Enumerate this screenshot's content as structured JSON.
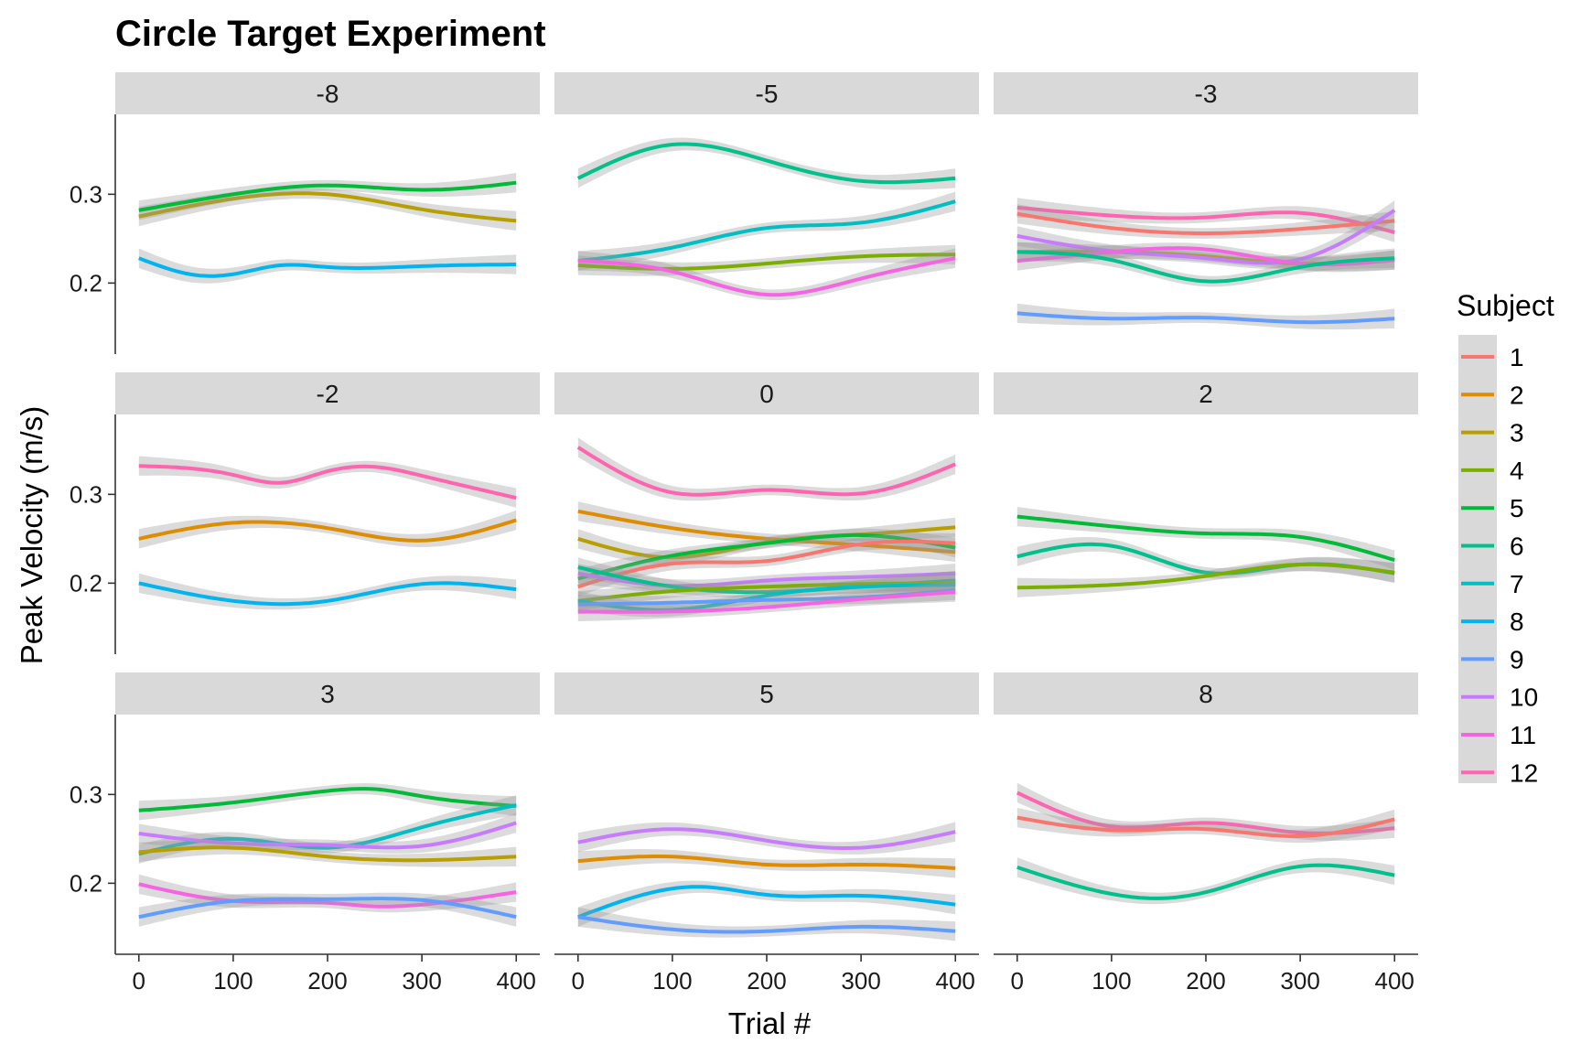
{
  "chart_data": {
    "type": "line",
    "title": "Circle Target Experiment",
    "xlabel": "Trial #",
    "ylabel": "Peak Velocity (m/s)",
    "xlim": [
      -25,
      425
    ],
    "ylim": [
      0.12,
      0.39
    ],
    "x_ticks": [
      0,
      100,
      200,
      300,
      400
    ],
    "y_ticks": [
      0.2,
      0.3
    ],
    "x_tick_labels": [
      "0",
      "100",
      "200",
      "300",
      "400"
    ],
    "y_tick_labels": [
      "0.2",
      "0.3"
    ],
    "smoother": "loess with grey confidence band",
    "legend": {
      "title": "Subject",
      "position": "right",
      "entries": [
        {
          "label": "1",
          "color": "#F8766D"
        },
        {
          "label": "2",
          "color": "#DE8C00"
        },
        {
          "label": "3",
          "color": "#B79F00"
        },
        {
          "label": "4",
          "color": "#7CAE00"
        },
        {
          "label": "5",
          "color": "#00BA38"
        },
        {
          "label": "6",
          "color": "#00C08B"
        },
        {
          "label": "7",
          "color": "#00BFC4"
        },
        {
          "label": "8",
          "color": "#00B4F0"
        },
        {
          "label": "9",
          "color": "#619CFF"
        },
        {
          "label": "10",
          "color": "#C77CFF"
        },
        {
          "label": "11",
          "color": "#F564E3"
        },
        {
          "label": "12",
          "color": "#FF64B0"
        }
      ]
    },
    "panels": [
      {
        "label": "-8",
        "series": [
          {
            "subject": "3",
            "x": [
              0,
              100,
              200,
              300,
              400
            ],
            "y": [
              0.275,
              0.295,
              0.3,
              0.283,
              0.27
            ]
          },
          {
            "subject": "5",
            "x": [
              0,
              100,
              200,
              300,
              400
            ],
            "y": [
              0.282,
              0.3,
              0.31,
              0.305,
              0.313
            ]
          },
          {
            "subject": "8",
            "x": [
              0,
              60,
              100,
              150,
              200,
              300,
              400
            ],
            "y": [
              0.228,
              0.209,
              0.21,
              0.22,
              0.218,
              0.219,
              0.221
            ]
          }
        ]
      },
      {
        "label": "-5",
        "series": [
          {
            "subject": "6",
            "x": [
              0,
              100,
              200,
              300,
              400
            ],
            "y": [
              0.318,
              0.356,
              0.338,
              0.315,
              0.318
            ]
          },
          {
            "subject": "7",
            "x": [
              0,
              100,
              200,
              300,
              400
            ],
            "y": [
              0.225,
              0.24,
              0.262,
              0.268,
              0.292
            ]
          },
          {
            "subject": "4",
            "x": [
              0,
              100,
              200,
              300,
              400
            ],
            "y": [
              0.22,
              0.216,
              0.222,
              0.23,
              0.232
            ]
          },
          {
            "subject": "11",
            "x": [
              0,
              100,
              200,
              300,
              400
            ],
            "y": [
              0.225,
              0.213,
              0.187,
              0.205,
              0.228
            ]
          }
        ]
      },
      {
        "label": "-3",
        "series": [
          {
            "subject": "12",
            "x": [
              0,
              100,
              200,
              300,
              400
            ],
            "y": [
              0.285,
              0.276,
              0.274,
              0.279,
              0.257
            ]
          },
          {
            "subject": "1",
            "x": [
              0,
              100,
              200,
              300,
              400
            ],
            "y": [
              0.278,
              0.262,
              0.256,
              0.261,
              0.27
            ]
          },
          {
            "subject": "3",
            "x": [
              0,
              100,
              200,
              300,
              400
            ],
            "y": [
              0.235,
              0.235,
              0.23,
              0.222,
              0.226
            ]
          },
          {
            "subject": "10",
            "x": [
              0,
              100,
              200,
              300,
              400
            ],
            "y": [
              0.253,
              0.236,
              0.228,
              0.227,
              0.282
            ]
          },
          {
            "subject": "11",
            "x": [
              0,
              100,
              200,
              300,
              400
            ],
            "y": [
              0.225,
              0.235,
              0.238,
              0.222,
              0.226
            ]
          },
          {
            "subject": "6",
            "x": [
              0,
              100,
              200,
              300,
              400
            ],
            "y": [
              0.235,
              0.226,
              0.202,
              0.218,
              0.228
            ]
          },
          {
            "subject": "9",
            "x": [
              0,
              100,
              200,
              300,
              400
            ],
            "y": [
              0.166,
              0.16,
              0.161,
              0.156,
              0.16
            ]
          }
        ]
      },
      {
        "label": "-2",
        "series": [
          {
            "subject": "12",
            "x": [
              0,
              100,
              150,
              200,
              250,
              300,
              400
            ],
            "y": [
              0.332,
              0.322,
              0.313,
              0.326,
              0.331,
              0.321,
              0.296
            ]
          },
          {
            "subject": "2",
            "x": [
              0,
              100,
              200,
              300,
              400
            ],
            "y": [
              0.25,
              0.268,
              0.262,
              0.248,
              0.271
            ]
          },
          {
            "subject": "8",
            "x": [
              0,
              100,
              200,
              300,
              400
            ],
            "y": [
              0.2,
              0.18,
              0.18,
              0.199,
              0.193
            ]
          }
        ]
      },
      {
        "label": "0",
        "series": [
          {
            "subject": "12",
            "x": [
              0,
              100,
              200,
              300,
              400
            ],
            "y": [
              0.353,
              0.302,
              0.305,
              0.301,
              0.334
            ]
          },
          {
            "subject": "2",
            "x": [
              0,
              100,
              200,
              300,
              400
            ],
            "y": [
              0.281,
              0.262,
              0.25,
              0.243,
              0.235
            ]
          },
          {
            "subject": "3",
            "x": [
              0,
              100,
              200,
              300,
              400
            ],
            "y": [
              0.25,
              0.229,
              0.246,
              0.255,
              0.263
            ]
          },
          {
            "subject": "5",
            "x": [
              0,
              100,
              200,
              300,
              400
            ],
            "y": [
              0.205,
              0.231,
              0.245,
              0.254,
              0.24
            ]
          },
          {
            "subject": "1",
            "x": [
              0,
              100,
              200,
              300,
              400
            ],
            "y": [
              0.196,
              0.222,
              0.225,
              0.244,
              0.245
            ]
          },
          {
            "subject": "10",
            "x": [
              0,
              100,
              200,
              300,
              400
            ],
            "y": [
              0.211,
              0.197,
              0.203,
              0.207,
              0.211
            ]
          },
          {
            "subject": "6",
            "x": [
              0,
              100,
              200,
              300,
              400
            ],
            "y": [
              0.218,
              0.196,
              0.19,
              0.196,
              0.203
            ]
          },
          {
            "subject": "4",
            "x": [
              0,
              100,
              200,
              300,
              400
            ],
            "y": [
              0.18,
              0.191,
              0.196,
              0.199,
              0.2
            ]
          },
          {
            "subject": "7",
            "x": [
              0,
              100,
              200,
              300,
              400
            ],
            "y": [
              0.18,
              0.17,
              0.186,
              0.196,
              0.198
            ]
          },
          {
            "subject": "9",
            "x": [
              0,
              100,
              200,
              300,
              400
            ],
            "y": [
              0.176,
              0.178,
              0.181,
              0.184,
              0.192
            ]
          },
          {
            "subject": "11",
            "x": [
              0,
              100,
              200,
              300,
              400
            ],
            "y": [
              0.168,
              0.168,
              0.173,
              0.182,
              0.19
            ]
          }
        ]
      },
      {
        "label": "2",
        "series": [
          {
            "subject": "5",
            "x": [
              0,
              100,
              200,
              300,
              400
            ],
            "y": [
              0.275,
              0.264,
              0.256,
              0.252,
              0.226
            ]
          },
          {
            "subject": "6",
            "x": [
              0,
              100,
              200,
              300,
              400
            ],
            "y": [
              0.23,
              0.242,
              0.212,
              0.221,
              0.211
            ]
          },
          {
            "subject": "4",
            "x": [
              0,
              100,
              200,
              300,
              400
            ],
            "y": [
              0.195,
              0.198,
              0.208,
              0.221,
              0.212
            ]
          }
        ]
      },
      {
        "label": "3",
        "series": [
          {
            "subject": "5",
            "x": [
              0,
              100,
              200,
              250,
              300,
              400
            ],
            "y": [
              0.282,
              0.291,
              0.304,
              0.306,
              0.298,
              0.287
            ]
          },
          {
            "subject": "7",
            "x": [
              0,
              100,
              200,
              300,
              400
            ],
            "y": [
              0.233,
              0.25,
              0.24,
              0.263,
              0.288
            ]
          },
          {
            "subject": "10",
            "x": [
              0,
              100,
              200,
              300,
              400
            ],
            "y": [
              0.256,
              0.245,
              0.243,
              0.242,
              0.268
            ]
          },
          {
            "subject": "3",
            "x": [
              0,
              100,
              200,
              300,
              400
            ],
            "y": [
              0.235,
              0.24,
              0.23,
              0.226,
              0.23
            ]
          },
          {
            "subject": "11",
            "x": [
              0,
              100,
              200,
              250,
              300,
              400
            ],
            "y": [
              0.199,
              0.18,
              0.178,
              0.174,
              0.176,
              0.19
            ]
          },
          {
            "subject": "9",
            "x": [
              0,
              100,
              200,
              300,
              400
            ],
            "y": [
              0.162,
              0.18,
              0.182,
              0.181,
              0.162
            ]
          }
        ]
      },
      {
        "label": "5",
        "series": [
          {
            "subject": "10",
            "x": [
              0,
              100,
              200,
              300,
              400
            ],
            "y": [
              0.246,
              0.261,
              0.248,
              0.24,
              0.258
            ]
          },
          {
            "subject": "2",
            "x": [
              0,
              100,
              200,
              300,
              400
            ],
            "y": [
              0.225,
              0.23,
              0.221,
              0.221,
              0.217
            ]
          },
          {
            "subject": "8",
            "x": [
              0,
              130,
              200,
              300,
              400
            ],
            "y": [
              0.162,
              0.196,
              0.187,
              0.186,
              0.176
            ]
          },
          {
            "subject": "9",
            "x": [
              0,
              100,
              200,
              300,
              400
            ],
            "y": [
              0.162,
              0.148,
              0.146,
              0.151,
              0.146
            ]
          }
        ]
      },
      {
        "label": "8",
        "series": [
          {
            "subject": "12",
            "x": [
              0,
              100,
              200,
              300,
              400
            ],
            "y": [
              0.302,
              0.264,
              0.268,
              0.257,
              0.262
            ]
          },
          {
            "subject": "1",
            "x": [
              0,
              100,
              200,
              300,
              400
            ],
            "y": [
              0.274,
              0.26,
              0.261,
              0.253,
              0.272
            ]
          },
          {
            "subject": "6",
            "x": [
              0,
              100,
              150,
              200,
              300,
              400
            ],
            "y": [
              0.218,
              0.188,
              0.183,
              0.19,
              0.219,
              0.209
            ]
          }
        ]
      }
    ]
  }
}
